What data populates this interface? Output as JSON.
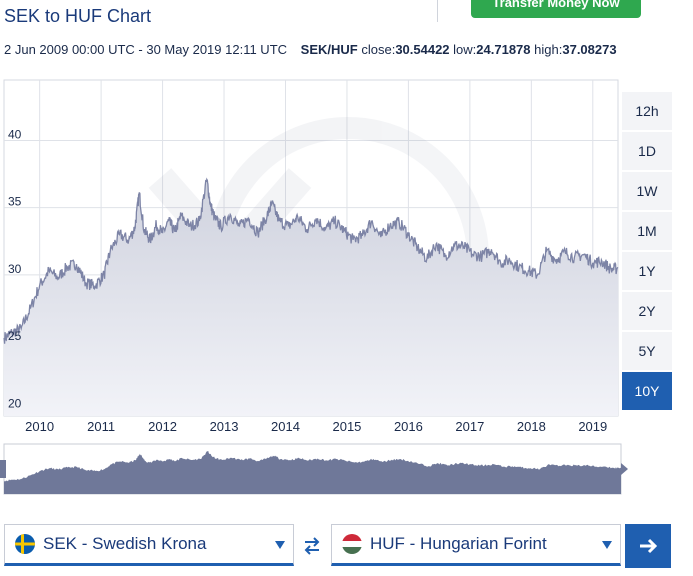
{
  "header": {
    "title": "SEK to HUF Chart",
    "transfer_button": "Transfer Money Now"
  },
  "info": {
    "date_range": "2 Jun 2009 00:00 UTC - 30 May 2019 12:11 UTC",
    "pair": "SEK/HUF",
    "close_label": "close:",
    "close_value": "30.54422",
    "low_label": "low:",
    "low_value": "24.71878",
    "high_label": "high:",
    "high_value": "37.08273"
  },
  "range_buttons": [
    {
      "label": "12h",
      "active": false
    },
    {
      "label": "1D",
      "active": false
    },
    {
      "label": "1W",
      "active": false
    },
    {
      "label": "1M",
      "active": false
    },
    {
      "label": "1Y",
      "active": false
    },
    {
      "label": "2Y",
      "active": false
    },
    {
      "label": "5Y",
      "active": false
    },
    {
      "label": "10Y",
      "active": true
    }
  ],
  "converter": {
    "from_label": "SEK - Swedish Krona",
    "to_label": "HUF - Hungarian Forint"
  },
  "colors": {
    "accent": "#1f5fb0",
    "transfer_green": "#2fa84f",
    "line": "#7d84a6",
    "area_top": "#cfd2de",
    "area_bottom": "#f2f3f8"
  },
  "icons": {
    "swap": "swap-arrows-icon",
    "go": "arrow-right-icon",
    "from_flag": "sweden-flag-icon",
    "to_flag": "hungary-flag-icon"
  },
  "chart_data": {
    "type": "area",
    "title": "",
    "xlabel": "",
    "ylabel": "",
    "ylim": [
      19.5,
      44.5
    ],
    "xlim": [
      2009.42,
      2019.41
    ],
    "grid": true,
    "y_ticks": [
      20,
      25,
      30,
      35,
      40
    ],
    "y_tick_labels": [
      "20",
      "25",
      "30",
      "35",
      "40"
    ],
    "x_ticks": [
      2010,
      2011,
      2012,
      2013,
      2014,
      2015,
      2016,
      2017,
      2018,
      2019
    ],
    "x_tick_labels": [
      "2010",
      "2011",
      "2012",
      "2013",
      "2014",
      "2015",
      "2016",
      "2017",
      "2018",
      "2019"
    ],
    "x": [
      2009.42,
      2009.55,
      2009.7,
      2009.85,
      2010.0,
      2010.15,
      2010.3,
      2010.45,
      2010.6,
      2010.75,
      2010.9,
      2011.05,
      2011.15,
      2011.3,
      2011.45,
      2011.55,
      2011.62,
      2011.7,
      2011.8,
      2011.9,
      2012.0,
      2012.1,
      2012.2,
      2012.3,
      2012.45,
      2012.6,
      2012.72,
      2012.78,
      2012.85,
      2012.95,
      2013.1,
      2013.25,
      2013.4,
      2013.55,
      2013.7,
      2013.78,
      2013.9,
      2014.05,
      2014.2,
      2014.35,
      2014.5,
      2014.65,
      2014.8,
      2014.95,
      2015.1,
      2015.25,
      2015.4,
      2015.55,
      2015.7,
      2015.85,
      2016.0,
      2016.15,
      2016.3,
      2016.45,
      2016.6,
      2016.75,
      2016.9,
      2017.05,
      2017.2,
      2017.35,
      2017.5,
      2017.65,
      2017.8,
      2017.95,
      2018.1,
      2018.25,
      2018.4,
      2018.55,
      2018.7,
      2018.85,
      2019.0,
      2019.15,
      2019.3,
      2019.41
    ],
    "values": [
      25.3,
      25.7,
      26.0,
      27.5,
      29.2,
      30.3,
      29.8,
      30.6,
      30.8,
      29.4,
      29.2,
      30.0,
      31.8,
      33.0,
      32.6,
      33.5,
      36.1,
      33.3,
      32.6,
      33.7,
      33.1,
      34.0,
      33.2,
      34.4,
      33.6,
      34.0,
      37.1,
      35.2,
      34.2,
      33.6,
      34.5,
      33.6,
      34.2,
      33.1,
      34.4,
      35.3,
      34.0,
      33.6,
      34.3,
      33.4,
      34.2,
      33.4,
      34.0,
      33.3,
      32.6,
      32.9,
      34.0,
      32.8,
      33.7,
      33.9,
      33.0,
      32.0,
      31.2,
      32.3,
      31.4,
      32.2,
      32.1,
      31.5,
      31.4,
      31.9,
      30.9,
      31.1,
      30.6,
      30.3,
      30.0,
      31.8,
      31.1,
      31.7,
      31.3,
      31.5,
      30.9,
      31.0,
      30.4,
      30.5
    ]
  }
}
